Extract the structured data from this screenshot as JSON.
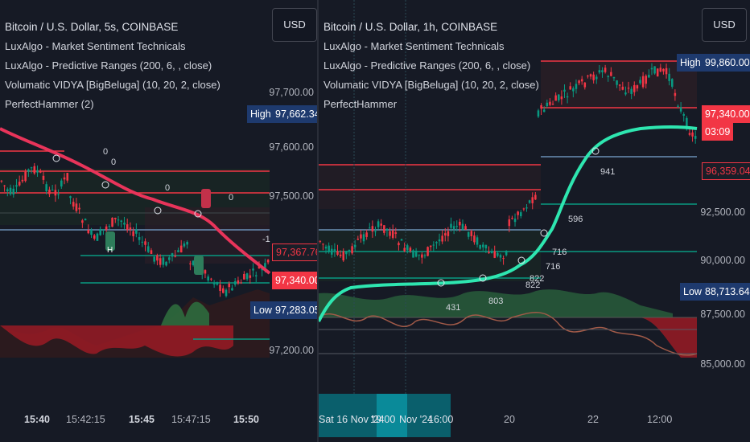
{
  "left": {
    "title": "Bitcoin / U.S. Dollar, 5s, COINBASE",
    "indicators": [
      "LuxAlgo - Market Sentiment Technicals",
      "LuxAlgo - Predictive Ranges (200, 6, , close)",
      "Volumatic VIDYA [BigBeluga] (10, 20, 2, close)",
      "PerfectHammer (2)"
    ],
    "currency": "USD",
    "price_labels": [
      "97,700.00",
      "97,600.00",
      "97,500.00",
      "97,200.00"
    ],
    "tags": {
      "high_label": "High",
      "high_value": "97,662.34",
      "v1": "97,367.76",
      "v2": "97,340.00",
      "low_label": "Low",
      "low_value": "97,283.05"
    },
    "time_labels": [
      "15:40",
      "15:42:15",
      "15:45",
      "15:47:15",
      "15:50"
    ],
    "annotations": [
      "0",
      "0",
      "0",
      "0",
      "-1",
      "H"
    ]
  },
  "right": {
    "title": "Bitcoin / U.S. Dollar, 1h, COINBASE",
    "indicators": [
      "LuxAlgo - Market Sentiment Technicals",
      "LuxAlgo - Predictive Ranges (200, 6, , close)",
      "Volumatic VIDYA [BigBeluga] (10, 20, 2, close)",
      "PerfectHammer"
    ],
    "currency": "USD",
    "price_labels": [
      "92,500.00",
      "90,000.00",
      "87,500.00",
      "85,000.00"
    ],
    "tags": {
      "high_label": "High",
      "high_value": "99,860.00",
      "v1": "97,340.00",
      "v1_time": "03:09",
      "v2": "96,359.04",
      "low_label": "Low",
      "low_value": "88,713.64"
    },
    "time_labels": [
      "Sat 16 Nov '24",
      "19:00",
      "Nov '24",
      "16:00",
      "20",
      "22",
      "12:00"
    ],
    "annotations": [
      "941",
      "596",
      "716",
      "716",
      "822",
      "822",
      "431",
      "803"
    ]
  },
  "colors": {
    "bg": "#161a25",
    "red": "#f23645",
    "green": "#089981",
    "vidya_up": "#2ee6b0",
    "vidya_down": "#e8345a",
    "tag_blue": "#1e3a6e"
  }
}
